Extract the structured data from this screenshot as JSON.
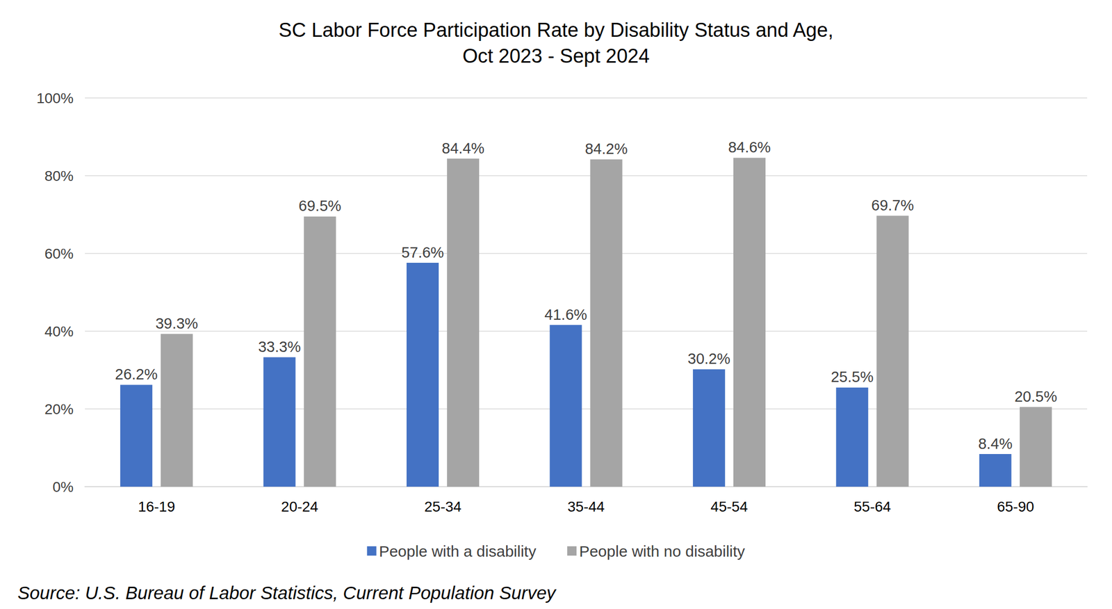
{
  "chart_data": {
    "type": "bar",
    "title": "SC Labor Force Participation Rate by Disability Status and Age,\nOct 2023 - Sept 2024",
    "categories": [
      "16-19",
      "20-24",
      "25-34",
      "35-44",
      "45-54",
      "55-64",
      "65-90"
    ],
    "series": [
      {
        "name": "People with a disability",
        "color": "#4472c4",
        "values": [
          26.2,
          33.3,
          57.6,
          41.6,
          30.2,
          25.5,
          8.4
        ],
        "value_labels": [
          "26.2%",
          "33.3%",
          "57.6%",
          "41.6%",
          "30.2%",
          "25.5%",
          "8.4%"
        ]
      },
      {
        "name": "People with no disability",
        "color": "#a5a5a5",
        "values": [
          39.3,
          69.5,
          84.4,
          84.2,
          84.6,
          69.7,
          20.5
        ],
        "value_labels": [
          "39.3%",
          "69.5%",
          "84.4%",
          "84.2%",
          "84.6%",
          "69.7%",
          "20.5%"
        ]
      }
    ],
    "ylim": [
      0,
      100
    ],
    "yticks": [
      {
        "value": 0,
        "label": "0%"
      },
      {
        "value": 20,
        "label": "20%"
      },
      {
        "value": 40,
        "label": "40%"
      },
      {
        "value": 60,
        "label": "60%"
      },
      {
        "value": 80,
        "label": "80%"
      },
      {
        "value": 100,
        "label": "100%"
      }
    ],
    "grid": true,
    "legend": "bottom",
    "data_labels": true,
    "annotations": [
      "Source: U.S. Bureau of Labor Statistics, Current Population Survey"
    ]
  }
}
